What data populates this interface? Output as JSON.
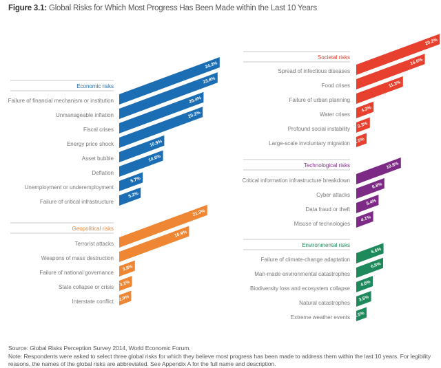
{
  "title": {
    "prefix": "Figure 3.1:",
    "text": "Global Risks for Which Most Progress Has Been Made within the Last 10 Years"
  },
  "chart_data": {
    "type": "bar",
    "orientation": "horizontal",
    "unit": "%",
    "groups": [
      {
        "name": "Economic risks",
        "color": "#1b6db4",
        "column": "left",
        "categories": [
          "Failure of financial mechanism or institution",
          "Unmanageable inflation",
          "Fiscal crises",
          "Energy price shock",
          "Asset bubble",
          "Deflation",
          "Unemployment or underemployment",
          "Failure of critical infrastructure"
        ],
        "values": [
          24.3,
          23.8,
          20.4,
          20.2,
          10.9,
          10.6,
          5.7,
          5.2
        ]
      },
      {
        "name": "Geopolitical risks",
        "color": "#ee8634",
        "column": "left",
        "categories": [
          "Terrorist attacks",
          "Weapons of mass destruction",
          "Failure of national governance",
          "State collapse or crisis",
          "Interstate conflict"
        ],
        "values": [
          21.3,
          16.9,
          3.8,
          3.1,
          2.9
        ]
      },
      {
        "name": "Societal risks",
        "color": "#e8402f",
        "column": "right",
        "categories": [
          "Spread of infectious diseases",
          "Food crises",
          "Failure of urban planning",
          "Water crises",
          "Profound social instability",
          "Large-scale involuntary migration"
        ],
        "values": [
          20.2,
          16.6,
          11.3,
          4.2,
          3.3,
          2.5
        ]
      },
      {
        "name": "Technological risks",
        "color": "#7d2a86",
        "column": "right",
        "categories": [
          "Critical information infrastructure breakdown",
          "Cyber attacks",
          "Data fraud or theft",
          "Misuse of technologies"
        ],
        "values": [
          10.8,
          6.8,
          5.4,
          4.1
        ]
      },
      {
        "name": "Environmental risks",
        "color": "#1e8a5b",
        "column": "right",
        "categories": [
          "Failure of climate-change adaptation",
          "Man-made environmental catastrophes",
          "Biodiversity loss and ecosystem collapse",
          "Natural catastrophes",
          "Extreme weather events"
        ],
        "values": [
          6.6,
          6.5,
          4.0,
          3.6,
          2.5
        ]
      }
    ]
  },
  "footer": {
    "source": "Source: Global Risks Perception Survey 2014, World Economic Forum.",
    "note_line1": "Note: Respondents were asked to select three global risks for which they believe most progress has been made to address them within the last 10 years. For legibility",
    "note_line2": "reasons, the names of the global risks are abbreviated. See Appendix A for the full name and description."
  }
}
